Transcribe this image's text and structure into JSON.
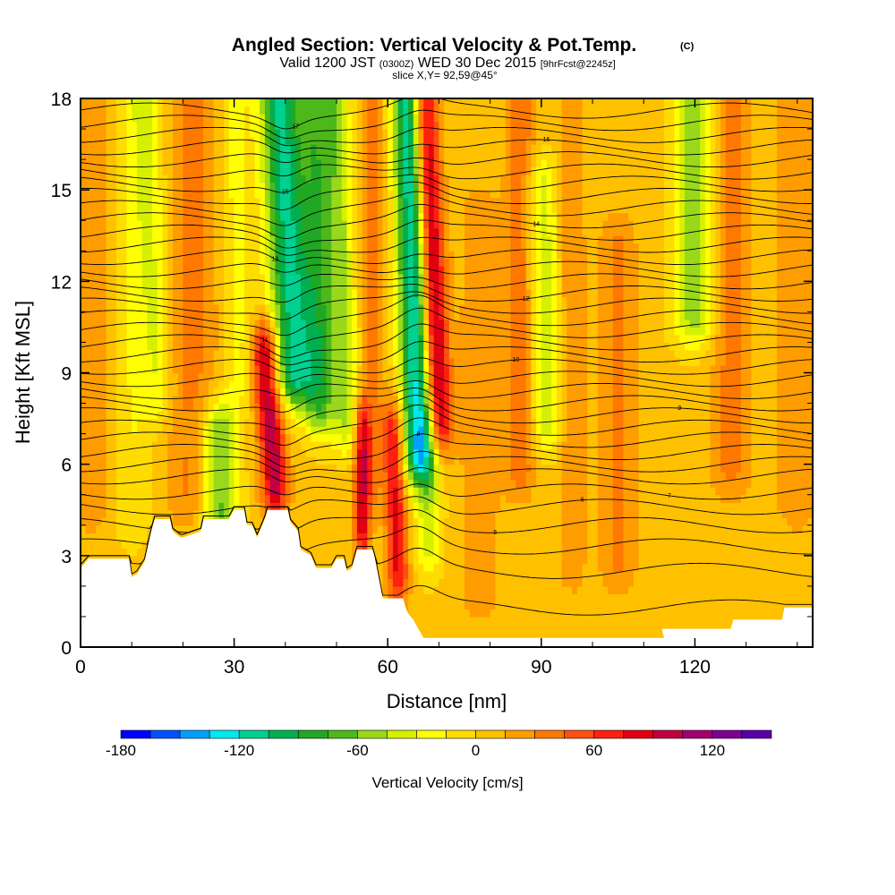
{
  "title": {
    "main": "Angled Section: Vertical Velocity & Pot.Temp.",
    "unit_tag": "(C)",
    "valid_prefix": "Valid 1200 JST",
    "valid_utc": "(0300Z)",
    "valid_date": "WED 30 Dec 2015",
    "forecast_tag": "[9hrFcst@2245z]",
    "slice": "slice X,Y= 92,59@45°"
  },
  "chart_data": {
    "type": "heatmap",
    "xlabel": "Distance [nm]",
    "ylabel": "Height [Kft MSL]",
    "xlim": [
      0,
      143
    ],
    "ylim": [
      0,
      18
    ],
    "x_ticks": [
      0,
      30,
      60,
      90,
      120
    ],
    "y_ticks": [
      0,
      3,
      6,
      9,
      12,
      15,
      18
    ],
    "x_tick_labels": [
      "0",
      "30",
      "60",
      "90",
      "120"
    ],
    "y_tick_labels": [
      "0",
      "3",
      "6",
      "9",
      "12",
      "15",
      "18"
    ],
    "field": "Vertical Velocity",
    "contour_field": "Potential Temperature (C)",
    "background_value_cm_s": 5,
    "vertical_velocity_features": [
      {
        "x": 2,
        "x_shift": 0,
        "bottom": 5.0,
        "top": 18,
        "width": 4,
        "value": 25
      },
      {
        "x": 10,
        "x_shift": 0,
        "bottom": 4.5,
        "top": 18,
        "width": 3.5,
        "value": -20
      },
      {
        "x": 15,
        "x_shift": -2,
        "bottom": 8.5,
        "top": 18,
        "width": 3,
        "value": -35
      },
      {
        "x": 22,
        "x_shift": 0,
        "bottom": 5.0,
        "top": 18,
        "width": 5,
        "value": 30
      },
      {
        "x": 27,
        "x_shift": 0,
        "bottom": 4.5,
        "top": 7.0,
        "width": 3.5,
        "value": -75
      },
      {
        "x": 31,
        "x_shift": -1,
        "bottom": 9.0,
        "top": 18,
        "width": 3,
        "value": -25
      },
      {
        "x": 38,
        "x_shift": -2,
        "bottom": 5.5,
        "top": 9.5,
        "width": 2.5,
        "value": 100
      },
      {
        "x": 42,
        "x_shift": -3,
        "bottom": 9.0,
        "top": 18,
        "width": 4,
        "value": -115
      },
      {
        "x": 47,
        "x_shift": -1,
        "bottom": 8.0,
        "top": 18,
        "width": 3,
        "value": -70
      },
      {
        "x": 52,
        "x_shift": -2,
        "bottom": 7.5,
        "top": 18,
        "width": 2.5,
        "value": -50
      },
      {
        "x": 55,
        "x_shift": 0,
        "bottom": 4.0,
        "top": 7.0,
        "width": 1.5,
        "value": 80
      },
      {
        "x": 57,
        "x_shift": 0,
        "bottom": 5.5,
        "top": 18,
        "width": 2,
        "value": 30
      },
      {
        "x": 62,
        "x_shift": -1,
        "bottom": 2.5,
        "top": 7.0,
        "width": 2,
        "value": 75
      },
      {
        "x": 66,
        "x_shift": -2,
        "bottom": 6.5,
        "top": 18,
        "width": 3,
        "value": -130
      },
      {
        "x": 70,
        "x_shift": -3,
        "bottom": 7.5,
        "top": 18,
        "width": 2.5,
        "value": 105
      },
      {
        "x": 68,
        "x_shift": 0,
        "bottom": 3.5,
        "top": 7.0,
        "width": 2.5,
        "value": -45
      },
      {
        "x": 78,
        "x_shift": 0,
        "bottom": 2.0,
        "top": 14,
        "width": 4,
        "value": 20
      },
      {
        "x": 86,
        "x_shift": 0,
        "bottom": 6.0,
        "top": 18,
        "width": 3,
        "value": 35
      },
      {
        "x": 91,
        "x_shift": -1,
        "bottom": 7.5,
        "top": 15,
        "width": 3,
        "value": -45
      },
      {
        "x": 96,
        "x_shift": 0,
        "bottom": 3.0,
        "top": 18,
        "width": 2.5,
        "value": 25
      },
      {
        "x": 105,
        "x_shift": 0,
        "bottom": 3.0,
        "top": 13,
        "width": 3.5,
        "value": 30
      },
      {
        "x": 120,
        "x_shift": 0,
        "bottom": 11.0,
        "top": 18,
        "width": 4,
        "value": -60
      },
      {
        "x": 127,
        "x_shift": 0,
        "bottom": 6.0,
        "top": 18,
        "width": 4,
        "value": 30
      },
      {
        "x": 140,
        "x_shift": 0,
        "bottom": 5.0,
        "top": 18,
        "width": 4,
        "value": 25
      }
    ],
    "terrain": [
      [
        0,
        2.6
      ],
      [
        1.6,
        2.9
      ],
      [
        9.5,
        2.9
      ],
      [
        10,
        2.3
      ],
      [
        11,
        2.4
      ],
      [
        12.5,
        2.8
      ],
      [
        13.8,
        3.8
      ],
      [
        14.5,
        4.2
      ],
      [
        17.5,
        4.2
      ],
      [
        18,
        3.8
      ],
      [
        19.5,
        3.6
      ],
      [
        20,
        3.6
      ],
      [
        23.5,
        3.8
      ],
      [
        24,
        4.2
      ],
      [
        29,
        4.2
      ],
      [
        30,
        4.5
      ],
      [
        32,
        4.5
      ],
      [
        32.5,
        4.0
      ],
      [
        33.5,
        4.0
      ],
      [
        34.5,
        3.6
      ],
      [
        36,
        4.2
      ],
      [
        36.5,
        4.5
      ],
      [
        40.5,
        4.5
      ],
      [
        41,
        4.1
      ],
      [
        42.5,
        3.8
      ],
      [
        43,
        3.2
      ],
      [
        45,
        3.0
      ],
      [
        46,
        2.6
      ],
      [
        49,
        2.6
      ],
      [
        50,
        2.9
      ],
      [
        51.5,
        2.9
      ],
      [
        52,
        2.5
      ],
      [
        53,
        2.6
      ],
      [
        54,
        3.2
      ],
      [
        57,
        3.2
      ],
      [
        57.5,
        2.9
      ],
      [
        59,
        1.6
      ],
      [
        63,
        1.6
      ],
      [
        63.5,
        1.3
      ],
      [
        64,
        1.1
      ],
      [
        65,
        0.9
      ],
      [
        66,
        0.6
      ],
      [
        67,
        0.3
      ],
      [
        114,
        0.3
      ],
      [
        113.5,
        0.6
      ],
      [
        127,
        0.6
      ],
      [
        127.5,
        0.9
      ],
      [
        137,
        0.9
      ],
      [
        137.5,
        1.3
      ],
      [
        143,
        1.3
      ]
    ],
    "theta_contours": [
      {
        "base": 1.3
      },
      {
        "base": 2.5
      },
      {
        "base": 3.3
      },
      {
        "base": 4.0,
        "label": "5"
      },
      {
        "base": 4.6,
        "label": "6"
      },
      {
        "base": 5.1,
        "label": "7"
      },
      {
        "base": 5.6
      },
      {
        "base": 6.0
      },
      {
        "base": 6.4,
        "label": "8"
      },
      {
        "base": 6.8
      },
      {
        "base": 7.2
      },
      {
        "base": 7.6,
        "label": "9"
      },
      {
        "base": 8.0
      },
      {
        "base": 8.4
      },
      {
        "base": 8.8
      },
      {
        "base": 9.2,
        "label": "10"
      },
      {
        "base": 9.6
      },
      {
        "base": 10.0
      },
      {
        "base": 10.4,
        "label": "11"
      },
      {
        "base": 10.8
      },
      {
        "base": 11.2
      },
      {
        "base": 11.6,
        "label": "12"
      },
      {
        "base": 12.0
      },
      {
        "base": 12.4
      },
      {
        "base": 12.8,
        "label": "13"
      },
      {
        "base": 13.2
      },
      {
        "base": 13.6
      },
      {
        "base": 14.0,
        "label": "14"
      },
      {
        "base": 14.4
      },
      {
        "base": 14.8
      },
      {
        "base": 15.2,
        "label": "15"
      },
      {
        "base": 15.6
      },
      {
        "base": 16.0
      },
      {
        "base": 16.4,
        "label": "16"
      },
      {
        "base": 16.8
      },
      {
        "base": 17.2
      },
      {
        "base": 17.6,
        "label": "17"
      }
    ],
    "colorbar": {
      "title": "Vertical Velocity [cm/s]",
      "bounds": [
        -180,
        -165,
        -150,
        -135,
        -120,
        -105,
        -90,
        -75,
        -60,
        -45,
        -30,
        -15,
        0,
        15,
        30,
        45,
        60,
        75,
        90,
        105,
        120,
        135,
        150
      ],
      "colors": [
        "#0000ff",
        "#0050ff",
        "#00a0ff",
        "#00e8f0",
        "#00d090",
        "#00b050",
        "#1fa824",
        "#4cb81a",
        "#99d81a",
        "#d6f000",
        "#ffff00",
        "#ffdc00",
        "#ffc000",
        "#ff9c00",
        "#ff7800",
        "#ff5010",
        "#ff2010",
        "#e00010",
        "#c00040",
        "#a00070",
        "#7d0090",
        "#5a00a8"
      ],
      "tick_values": [
        -180,
        -120,
        -60,
        0,
        60,
        120
      ],
      "tick_labels": [
        "-180",
        "-120",
        "-60",
        "0",
        "60",
        "120"
      ]
    }
  }
}
